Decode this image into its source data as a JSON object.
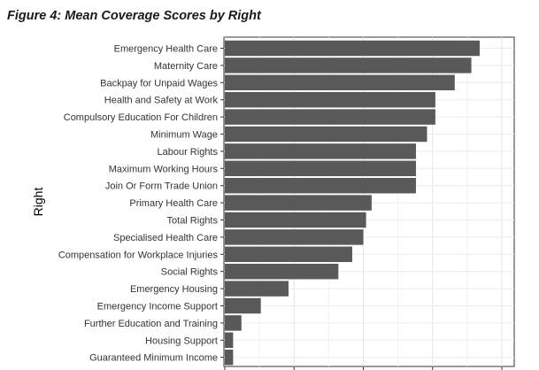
{
  "figure": {
    "title": "Figure 4:  Mean Coverage Scores by Right"
  },
  "chart_data": {
    "type": "bar",
    "orientation": "horizontal",
    "title": "",
    "xlabel": "",
    "ylabel": "Right",
    "xlim": [
      0,
      1
    ],
    "grid": true,
    "bar_color": "#595959",
    "categories": [
      "Emergency Health Care",
      "Maternity Care",
      "Backpay for Unpaid Wages",
      "Health and Safety at Work",
      "Compulsory Education For Children",
      "Minimum Wage",
      "Labour Rights",
      "Maximum Working Hours",
      "Join Or Form Trade Union",
      "Primary Health Care",
      "Total Rights",
      "Specialised Health Care",
      "Compensation for Workplace Injuries",
      "Social Rights",
      "Emergency Housing",
      "Emergency Income Support",
      "Further Education and Training",
      "Housing Support",
      "Guaranteed Minimum Income"
    ],
    "values": [
      0.92,
      0.89,
      0.83,
      0.76,
      0.76,
      0.73,
      0.69,
      0.69,
      0.69,
      0.53,
      0.51,
      0.5,
      0.46,
      0.41,
      0.23,
      0.13,
      0.06,
      0.03,
      0.03
    ]
  }
}
